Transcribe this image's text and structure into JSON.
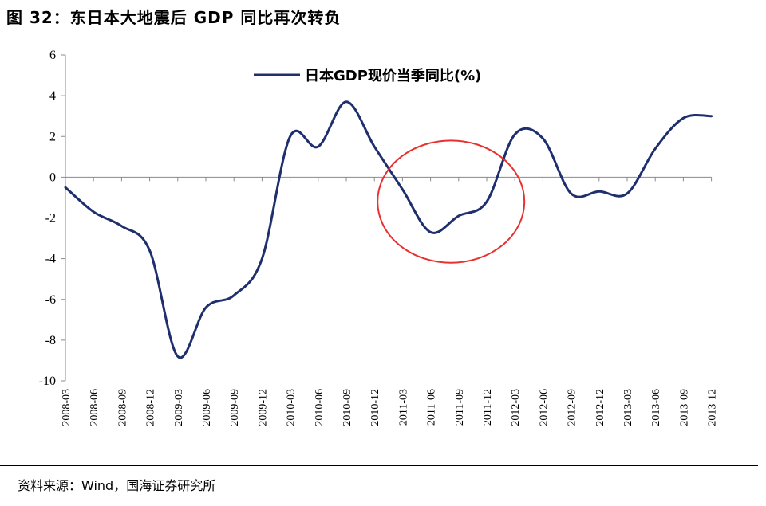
{
  "header": {
    "title": "图 32：东日本大地震后 GDP 同比再次转负"
  },
  "footer": {
    "source": "资料来源：Wind，国海证券研究所"
  },
  "chart_data": {
    "type": "line",
    "title": "图 32：东日本大地震后 GDP 同比再次转负",
    "xlabel": "",
    "ylabel": "",
    "ylim": [
      -10,
      6
    ],
    "yticks": [
      6,
      4,
      2,
      0,
      -2,
      -4,
      -6,
      -8,
      -10
    ],
    "categories": [
      "2008-03",
      "2008-06",
      "2008-09",
      "2008-12",
      "2009-03",
      "2009-06",
      "2009-09",
      "2009-12",
      "2010-03",
      "2010-06",
      "2010-09",
      "2010-12",
      "2011-03",
      "2011-06",
      "2011-09",
      "2011-12",
      "2012-03",
      "2012-06",
      "2012-09",
      "2012-12",
      "2013-03",
      "2013-06",
      "2013-09",
      "2013-12"
    ],
    "series": [
      {
        "name": "日本GDP现价当季同比(%)",
        "color": "#1f2f6e",
        "values": [
          -0.5,
          -1.7,
          -2.4,
          -3.6,
          -8.8,
          -6.4,
          -5.8,
          -4.0,
          2.0,
          1.5,
          3.7,
          1.5,
          -0.6,
          -2.7,
          -1.9,
          -1.2,
          2.1,
          1.9,
          -0.8,
          -0.7,
          -0.8,
          1.4,
          2.9,
          3.0
        ]
      }
    ],
    "legend_position": "top-center",
    "grid": false,
    "annotations": [
      {
        "type": "ellipse",
        "color": "#e8312f",
        "x_range": [
          "2010-12",
          "2012-03"
        ],
        "y_range": [
          -4.2,
          1.8
        ]
      }
    ]
  }
}
